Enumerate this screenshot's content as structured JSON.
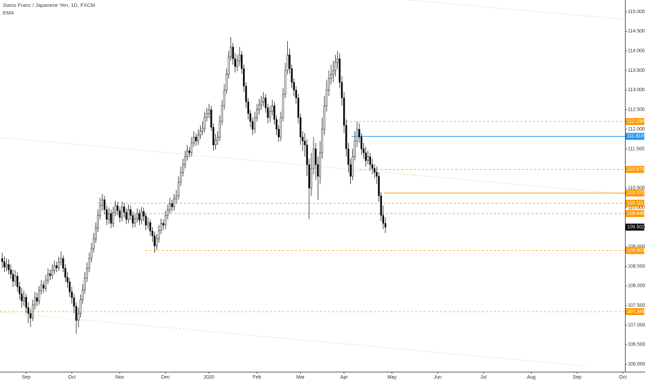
{
  "chart_data": {
    "type": "candlestick",
    "title": "Swiss Franc / Japanese Yen, 1D, FXCM",
    "subtitle": "EMA",
    "up_color": "#ffffff",
    "down_color": "#000000",
    "border_color": "#000000",
    "open": [
      108.7,
      108.62,
      108.48,
      108.55,
      108.41,
      108.3,
      108.12,
      108.25,
      107.98,
      107.8,
      107.62,
      107.71,
      107.45,
      107.3,
      107.18,
      107.52,
      107.7,
      107.61,
      107.88,
      108.02,
      107.94,
      108.15,
      108.31,
      108.27,
      108.4,
      108.52,
      108.46,
      108.61,
      108.7,
      108.45,
      108.22,
      108.1,
      107.85,
      107.7,
      107.48,
      107.12,
      107.3,
      107.65,
      107.9,
      108.2,
      108.45,
      108.7,
      108.95,
      109.2,
      109.48,
      109.8,
      110.05,
      110.2,
      109.95,
      109.7,
      109.85,
      109.6,
      109.88,
      110.05,
      109.92,
      109.75,
      110.02,
      109.88,
      109.7,
      109.95,
      109.8,
      109.6,
      109.72,
      109.85,
      109.68,
      109.9,
      109.78,
      109.55,
      109.62,
      109.4,
      109.28,
      109.02,
      109.2,
      109.42,
      109.6,
      109.55,
      109.8,
      109.95,
      110.1,
      110.02,
      110.22,
      110.3,
      110.65,
      110.9,
      111.1,
      111.3,
      111.45,
      111.4,
      111.65,
      111.8,
      111.7,
      111.85,
      111.95,
      112.02,
      112.3,
      112.4,
      112.5,
      112.05,
      111.6,
      111.72,
      111.8,
      112.2,
      112.6,
      113.0,
      113.4,
      113.85,
      114.1,
      113.8,
      113.6,
      113.75,
      113.9,
      113.55,
      113.1,
      112.7,
      112.4,
      112.2,
      112.0,
      112.3,
      112.5,
      112.62,
      112.7,
      112.8,
      112.55,
      112.3,
      112.45,
      112.6,
      112.25,
      112.0,
      111.8,
      112.3,
      112.9,
      113.5,
      113.9,
      113.55,
      113.2,
      113.0,
      112.8,
      112.3,
      111.8,
      111.7,
      111.6,
      111.1,
      110.5,
      111.0,
      111.5,
      111.1,
      110.8,
      111.4,
      112.0,
      112.6,
      113.0,
      113.3,
      113.4,
      113.5,
      113.7,
      113.8,
      113.2,
      112.8,
      112.1,
      111.5,
      111.1,
      110.8,
      111.3,
      111.7,
      112.0,
      111.8,
      111.5,
      111.4,
      111.2,
      111.3,
      111.1,
      111.0,
      110.9,
      110.8,
      110.3,
      109.8,
      109.6
    ],
    "high": [
      108.85,
      108.75,
      108.7,
      108.68,
      108.55,
      108.42,
      108.4,
      108.35,
      108.1,
      107.95,
      107.88,
      107.8,
      107.58,
      107.42,
      107.65,
      107.85,
      107.82,
      108.0,
      108.15,
      108.12,
      108.28,
      108.45,
      108.42,
      108.55,
      108.65,
      108.62,
      108.75,
      108.88,
      108.78,
      108.55,
      108.35,
      108.2,
      107.98,
      107.8,
      107.58,
      107.45,
      107.78,
      108.05,
      108.35,
      108.6,
      108.85,
      109.1,
      109.35,
      109.62,
      109.95,
      110.25,
      110.35,
      110.3,
      110.05,
      110.0,
      109.95,
      110.02,
      110.18,
      110.15,
      110.02,
      110.15,
      110.12,
      109.98,
      110.08,
      110.05,
      109.9,
      109.85,
      109.98,
      109.95,
      110.02,
      110.0,
      109.85,
      109.75,
      109.7,
      109.5,
      109.38,
      109.32,
      109.55,
      109.72,
      109.7,
      109.92,
      110.08,
      110.25,
      110.2,
      110.35,
      110.45,
      110.8,
      111.05,
      111.25,
      111.45,
      111.6,
      111.55,
      111.8,
      111.95,
      111.9,
      112.0,
      112.1,
      112.2,
      112.45,
      112.55,
      112.65,
      112.6,
      112.15,
      111.88,
      111.95,
      112.35,
      112.75,
      113.15,
      113.55,
      114.0,
      114.35,
      114.2,
      113.95,
      113.9,
      114.1,
      114.0,
      113.65,
      113.2,
      112.8,
      112.5,
      112.3,
      112.45,
      112.65,
      112.78,
      112.85,
      112.95,
      112.9,
      112.65,
      112.6,
      112.75,
      112.7,
      112.35,
      112.1,
      112.45,
      113.05,
      113.7,
      114.25,
      114.05,
      113.65,
      113.3,
      113.1,
      112.9,
      112.4,
      111.95,
      111.9,
      111.75,
      111.25,
      111.4,
      111.8,
      111.65,
      111.3,
      111.7,
      112.3,
      112.85,
      113.25,
      113.5,
      113.65,
      113.75,
      113.9,
      114.0,
      113.95,
      113.35,
      112.95,
      112.25,
      111.65,
      111.25,
      111.5,
      111.95,
      112.2,
      112.15,
      111.9,
      111.65,
      111.55,
      111.45,
      111.4,
      111.25,
      111.1,
      111.05,
      110.9,
      110.4,
      110.05,
      109.75
    ],
    "low": [
      108.45,
      108.35,
      108.38,
      108.3,
      108.18,
      107.98,
      108.0,
      107.85,
      107.65,
      107.45,
      107.5,
      107.3,
      107.05,
      106.95,
      107.1,
      107.4,
      107.48,
      107.52,
      107.78,
      107.82,
      107.85,
      108.05,
      108.15,
      108.18,
      108.3,
      108.35,
      108.38,
      108.52,
      108.35,
      108.1,
      107.95,
      107.72,
      107.55,
      107.3,
      106.78,
      106.95,
      107.2,
      107.55,
      107.8,
      108.1,
      108.35,
      108.6,
      108.85,
      109.1,
      109.38,
      109.7,
      109.92,
      109.82,
      109.55,
      109.58,
      109.48,
      109.5,
      109.78,
      109.8,
      109.62,
      109.65,
      109.75,
      109.58,
      109.6,
      109.68,
      109.48,
      109.5,
      109.62,
      109.55,
      109.58,
      109.65,
      109.42,
      109.45,
      109.28,
      109.12,
      108.85,
      108.92,
      109.1,
      109.32,
      109.42,
      109.45,
      109.7,
      109.85,
      109.9,
      109.92,
      110.1,
      110.2,
      110.55,
      110.8,
      111.0,
      111.2,
      111.28,
      111.3,
      111.55,
      111.58,
      111.6,
      111.75,
      111.85,
      111.92,
      112.2,
      112.28,
      111.95,
      111.45,
      111.48,
      111.6,
      111.7,
      112.1,
      112.5,
      112.9,
      113.3,
      113.75,
      113.65,
      113.45,
      113.48,
      113.62,
      113.42,
      112.95,
      112.55,
      112.25,
      112.05,
      111.85,
      111.9,
      112.2,
      112.38,
      112.5,
      112.58,
      112.42,
      112.15,
      112.18,
      112.35,
      112.12,
      111.85,
      111.68,
      111.7,
      112.2,
      112.8,
      113.4,
      113.42,
      113.05,
      112.85,
      112.65,
      112.15,
      111.6,
      111.45,
      111.3,
      110.8,
      109.7,
      110.3,
      110.85,
      110.7,
      110.2,
      110.6,
      111.25,
      111.85,
      112.45,
      112.85,
      113.15,
      113.2,
      113.35,
      113.55,
      113.05,
      112.6,
      111.9,
      111.3,
      110.9,
      110.6,
      110.7,
      111.2,
      111.55,
      111.65,
      111.35,
      111.25,
      111.05,
      111.1,
      110.95,
      110.85,
      110.75,
      110.6,
      110.15,
      109.65,
      109.45,
      109.35
    ],
    "close": [
      108.62,
      108.48,
      108.55,
      108.41,
      108.3,
      108.12,
      108.25,
      107.98,
      107.8,
      107.62,
      107.71,
      107.45,
      107.3,
      107.18,
      107.52,
      107.7,
      107.61,
      107.88,
      108.02,
      107.94,
      108.15,
      108.31,
      108.27,
      108.4,
      108.52,
      108.46,
      108.61,
      108.7,
      108.45,
      108.22,
      108.1,
      107.85,
      107.7,
      107.48,
      107.12,
      107.3,
      107.65,
      107.9,
      108.2,
      108.45,
      108.7,
      108.95,
      109.2,
      109.48,
      109.8,
      110.05,
      110.2,
      109.95,
      109.7,
      109.85,
      109.6,
      109.88,
      110.05,
      109.92,
      109.75,
      110.02,
      109.88,
      109.7,
      109.95,
      109.8,
      109.6,
      109.72,
      109.85,
      109.68,
      109.9,
      109.78,
      109.55,
      109.62,
      109.4,
      109.28,
      109.02,
      109.2,
      109.42,
      109.6,
      109.55,
      109.8,
      109.95,
      110.1,
      110.02,
      110.22,
      110.3,
      110.65,
      110.9,
      111.1,
      111.3,
      111.45,
      111.4,
      111.65,
      111.8,
      111.7,
      111.85,
      111.95,
      112.02,
      112.3,
      112.4,
      112.5,
      112.05,
      111.6,
      111.72,
      111.8,
      112.2,
      112.6,
      113.0,
      113.4,
      113.85,
      114.1,
      113.8,
      113.6,
      113.75,
      113.9,
      113.55,
      113.1,
      112.7,
      112.4,
      112.2,
      112.0,
      112.3,
      112.5,
      112.62,
      112.7,
      112.8,
      112.55,
      112.3,
      112.45,
      112.6,
      112.25,
      112.0,
      111.8,
      112.3,
      112.9,
      113.5,
      113.9,
      113.55,
      113.2,
      113.0,
      112.8,
      112.3,
      111.8,
      111.7,
      111.6,
      111.1,
      110.5,
      111.0,
      111.5,
      111.1,
      110.8,
      111.4,
      112.0,
      112.6,
      113.0,
      113.3,
      113.4,
      113.5,
      113.7,
      113.8,
      113.2,
      112.8,
      112.1,
      111.5,
      111.1,
      110.8,
      111.3,
      111.7,
      112.0,
      111.8,
      111.5,
      111.4,
      111.2,
      111.3,
      111.1,
      111.0,
      110.9,
      110.8,
      110.3,
      109.8,
      109.6,
      109.502
    ],
    "last_price_color": "#000000",
    "levels": [
      {
        "value": 112.198,
        "color": "#ff9800",
        "style": "dashed"
      },
      {
        "value": 111.818,
        "color": "#2196f3",
        "style": "solid"
      },
      {
        "value": 110.973,
        "color": "#ff9800",
        "style": "dashed"
      },
      {
        "value": 110.372,
        "color": "#ff9800",
        "style": "solid"
      },
      {
        "value": 110.111,
        "color": "#ff9800",
        "style": "dashed"
      },
      {
        "value": 109.848,
        "color": "#ff9800",
        "style": "dashed"
      },
      {
        "value": 108.903,
        "color": "#ff9800",
        "style": "dashed"
      },
      {
        "value": 107.345,
        "color": "#ff9800",
        "style": "dashed"
      }
    ],
    "xlim": [
      -1,
      286
    ],
    "xticks": [
      {
        "value": 11,
        "label": "Sep"
      },
      {
        "value": 32,
        "label": "Oct"
      },
      {
        "value": 54,
        "label": "Nov"
      },
      {
        "value": 75,
        "label": "Dec"
      },
      {
        "value": 95,
        "label": "2020"
      },
      {
        "value": 117,
        "label": "Feb"
      },
      {
        "value": 137,
        "label": "Mar"
      },
      {
        "value": 157,
        "label": "Apr"
      },
      {
        "value": 179,
        "label": "May"
      },
      {
        "value": 200,
        "label": "Jun"
      },
      {
        "value": 221,
        "label": "Jul"
      },
      {
        "value": 243,
        "label": "Aug"
      },
      {
        "value": 264,
        "label": "Sep"
      },
      {
        "value": 285,
        "label": "Oct"
      }
    ],
    "ylim": [
      105.81,
      115.3
    ],
    "yticks": [
      {
        "value": 106,
        "label": "106.000"
      },
      {
        "value": 106.5,
        "label": "106.500"
      },
      {
        "value": 107,
        "label": "107.000"
      },
      {
        "value": 107.5,
        "label": "107.500"
      },
      {
        "value": 108,
        "label": "108.000"
      },
      {
        "value": 108.5,
        "label": "108.500"
      },
      {
        "value": 109,
        "label": "109.000"
      },
      {
        "value": 109.5,
        "label": "109.500"
      },
      {
        "value": 110,
        "label": "110.000"
      },
      {
        "value": 110.5,
        "label": "110.500"
      },
      {
        "value": 111,
        "label": "111.000"
      },
      {
        "value": 111.5,
        "label": "111.500"
      },
      {
        "value": 112,
        "label": "112.000"
      },
      {
        "value": 112.5,
        "label": "112.500"
      },
      {
        "value": 113,
        "label": "113.000"
      },
      {
        "value": 113.5,
        "label": "113.500"
      },
      {
        "value": 114,
        "label": "114.000"
      },
      {
        "value": 114.5,
        "label": "114.500"
      },
      {
        "value": 115,
        "label": "115.000"
      }
    ]
  }
}
